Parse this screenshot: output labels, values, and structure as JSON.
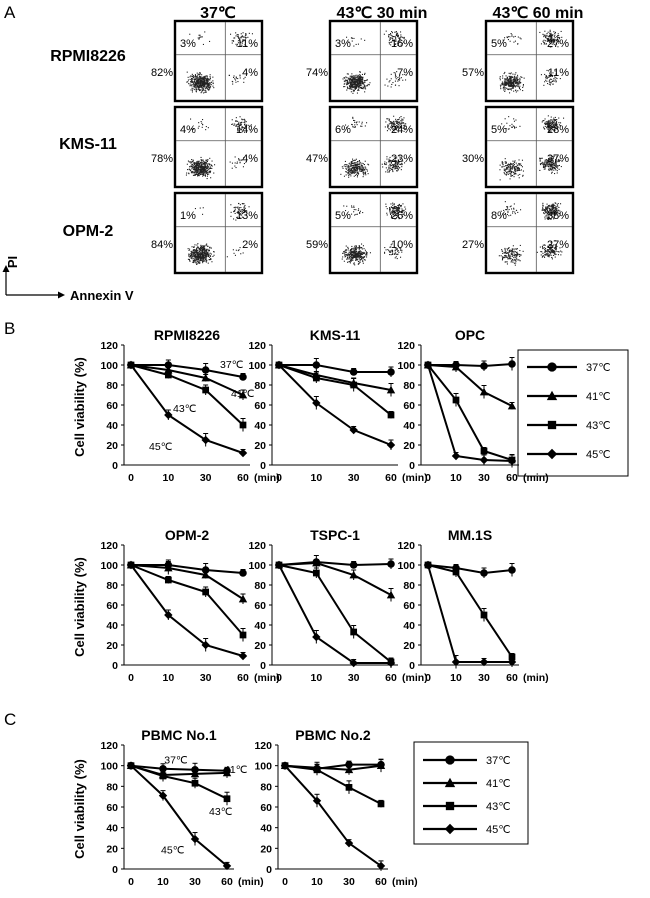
{
  "panel_labels": {
    "a": "A",
    "b": "B",
    "c": "C"
  },
  "flow": {
    "conditions": [
      "37℃",
      "43℃ 30 min",
      "43℃ 60 min"
    ],
    "cell_lines": [
      "RPMI8226",
      "KMS-11",
      "OPM-2"
    ],
    "quadrants": [
      [
        [
          "3%",
          "11%",
          "82%",
          "4%"
        ],
        [
          "3%",
          "16%",
          "74%",
          "7%"
        ],
        [
          "5%",
          "27%",
          "57%",
          "11%"
        ]
      ],
      [
        [
          "4%",
          "14%",
          "78%",
          "4%"
        ],
        [
          "6%",
          "24%",
          "47%",
          "23%"
        ],
        [
          "5%",
          "28%",
          "30%",
          "37%"
        ]
      ],
      [
        [
          "1%",
          "13%",
          "84%",
          "2%"
        ],
        [
          "5%",
          "26%",
          "59%",
          "10%"
        ],
        [
          "8%",
          "38%",
          "27%",
          "27%"
        ]
      ]
    ],
    "y_axis_label": "PI",
    "x_axis_label": "Annexin V"
  },
  "viability_axis": {
    "ylabel": "Cell viability (%)",
    "x_ticks": [
      "0",
      "10",
      "30",
      "60"
    ],
    "x_unit": "(min)",
    "y_ticks": [
      "0",
      "20",
      "40",
      "60",
      "80",
      "100",
      "120"
    ],
    "ylim": [
      0,
      120
    ]
  },
  "chart_data": [
    {
      "id": "rpmi",
      "type": "line",
      "title": "RPMI8226",
      "categories": [
        "0",
        "10",
        "30",
        "60"
      ],
      "ylabel": "Cell viability (%)",
      "ylim": [
        0,
        120
      ],
      "series": [
        {
          "name": "37℃",
          "values": [
            100,
            100,
            95,
            88
          ]
        },
        {
          "name": "41℃",
          "values": [
            100,
            95,
            87,
            70
          ]
        },
        {
          "name": "43℃",
          "values": [
            100,
            90,
            75,
            40
          ]
        },
        {
          "name": "45℃",
          "values": [
            100,
            50,
            25,
            12
          ]
        }
      ],
      "annotations": [
        "37℃",
        "41℃",
        "43℃",
        "45℃"
      ]
    },
    {
      "id": "kms",
      "type": "line",
      "title": "KMS-11",
      "categories": [
        "0",
        "10",
        "30",
        "60"
      ],
      "ylabel": "Cell viability (%)",
      "ylim": [
        0,
        120
      ],
      "series": [
        {
          "name": "37℃",
          "values": [
            100,
            100,
            93,
            93
          ]
        },
        {
          "name": "41℃",
          "values": [
            100,
            90,
            82,
            75
          ]
        },
        {
          "name": "43℃",
          "values": [
            100,
            87,
            80,
            50
          ]
        },
        {
          "name": "45℃",
          "values": [
            100,
            62,
            35,
            20
          ]
        }
      ]
    },
    {
      "id": "opc",
      "type": "line",
      "title": "OPC",
      "categories": [
        "0",
        "10",
        "30",
        "60"
      ],
      "ylabel": "Cell viability (%)",
      "ylim": [
        0,
        120
      ],
      "series": [
        {
          "name": "37℃",
          "values": [
            100,
            100,
            99,
            101
          ]
        },
        {
          "name": "41℃",
          "values": [
            100,
            98,
            73,
            59
          ]
        },
        {
          "name": "43℃",
          "values": [
            100,
            65,
            14,
            5
          ]
        },
        {
          "name": "45℃",
          "values": [
            100,
            9,
            5,
            4
          ]
        }
      ]
    },
    {
      "id": "opm",
      "type": "line",
      "title": "OPM-2",
      "categories": [
        "0",
        "10",
        "30",
        "60"
      ],
      "ylabel": "Cell viability (%)",
      "ylim": [
        0,
        120
      ],
      "series": [
        {
          "name": "37℃",
          "values": [
            100,
            100,
            95,
            92
          ]
        },
        {
          "name": "41℃",
          "values": [
            100,
            97,
            90,
            66
          ]
        },
        {
          "name": "43℃",
          "values": [
            100,
            85,
            73,
            30
          ]
        },
        {
          "name": "45℃",
          "values": [
            100,
            50,
            20,
            9
          ]
        }
      ]
    },
    {
      "id": "tspc",
      "type": "line",
      "title": "TSPC-1",
      "categories": [
        "0",
        "10",
        "30",
        "60"
      ],
      "ylabel": "Cell viability (%)",
      "ylim": [
        0,
        120
      ],
      "series": [
        {
          "name": "37℃",
          "values": [
            100,
            103,
            100,
            101
          ]
        },
        {
          "name": "41℃",
          "values": [
            100,
            102,
            90,
            70
          ]
        },
        {
          "name": "43℃",
          "values": [
            100,
            92,
            33,
            3
          ]
        },
        {
          "name": "45℃",
          "values": [
            100,
            28,
            2,
            2
          ]
        }
      ]
    },
    {
      "id": "mm1s",
      "type": "line",
      "title": "MM.1S",
      "categories": [
        "0",
        "10",
        "30",
        "60"
      ],
      "ylabel": "Cell viability (%)",
      "ylim": [
        0,
        120
      ],
      "series": [
        {
          "name": "37℃",
          "values": [
            100,
            97,
            92,
            95
          ]
        },
        {
          "name": "43℃",
          "values": [
            100,
            93,
            50,
            8
          ]
        },
        {
          "name": "45℃",
          "values": [
            100,
            3,
            3,
            3
          ]
        }
      ]
    },
    {
      "id": "pbmc1",
      "type": "line",
      "title": "PBMC No.1",
      "categories": [
        "0",
        "10",
        "30",
        "60"
      ],
      "ylabel": "Cell viability (%)",
      "ylim": [
        0,
        120
      ],
      "series": [
        {
          "name": "37℃",
          "values": [
            100,
            97,
            96,
            95
          ]
        },
        {
          "name": "41℃",
          "values": [
            100,
            91,
            92,
            93
          ]
        },
        {
          "name": "43℃",
          "values": [
            100,
            90,
            83,
            68
          ]
        },
        {
          "name": "45℃",
          "values": [
            100,
            71,
            29,
            3
          ]
        }
      ],
      "annotations": [
        "37℃",
        "41℃",
        "43℃",
        "45℃"
      ]
    },
    {
      "id": "pbmc2",
      "type": "line",
      "title": "PBMC No.2",
      "categories": [
        "0",
        "10",
        "30",
        "60"
      ],
      "ylabel": "Cell viability (%)",
      "ylim": [
        0,
        120
      ],
      "series": [
        {
          "name": "37℃",
          "values": [
            100,
            97,
            101,
            101
          ]
        },
        {
          "name": "41℃",
          "values": [
            100,
            98,
            96,
            100
          ]
        },
        {
          "name": "43℃",
          "values": [
            100,
            96,
            79,
            63
          ]
        },
        {
          "name": "45℃",
          "values": [
            100,
            66,
            25,
            3
          ]
        }
      ]
    }
  ],
  "legend": {
    "items": [
      {
        "label": "37℃",
        "marker": "circle-icon"
      },
      {
        "label": "41℃",
        "marker": "triangle-icon"
      },
      {
        "label": "43℃",
        "marker": "square-icon"
      },
      {
        "label": "45℃",
        "marker": "diamond-icon"
      }
    ]
  }
}
